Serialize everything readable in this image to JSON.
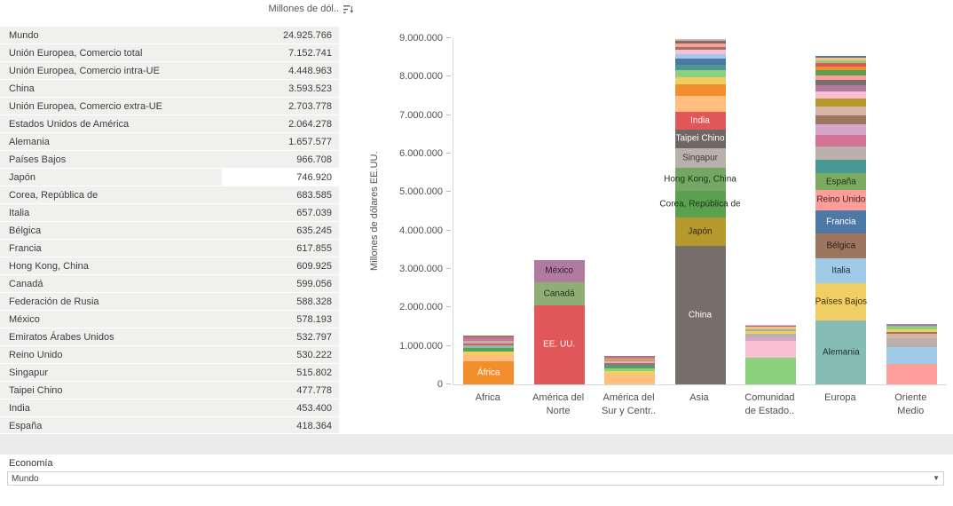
{
  "table": {
    "header": {
      "value_label": "Millones de dól..",
      "sort_icon": "sort-descending"
    },
    "rows": [
      {
        "name": "Mundo",
        "value": "24.925.766"
      },
      {
        "name": "Unión Europea, Comercio total",
        "value": "7.152.741"
      },
      {
        "name": "Unión Europea, Comercio intra-UE",
        "value": "4.448.963"
      },
      {
        "name": "China",
        "value": "3.593.523"
      },
      {
        "name": "Unión Europea, Comercio extra-UE",
        "value": "2.703.778"
      },
      {
        "name": "Estados Unidos de América",
        "value": "2.064.278"
      },
      {
        "name": "Alemania",
        "value": "1.657.577"
      },
      {
        "name": "Países Bajos",
        "value": "966.708"
      },
      {
        "name": "Japón",
        "value": "746.920",
        "highlighted": true
      },
      {
        "name": "Corea, República de",
        "value": "683.585"
      },
      {
        "name": "Italia",
        "value": "657.039"
      },
      {
        "name": "Bélgica",
        "value": "635.245"
      },
      {
        "name": "Francia",
        "value": "617.855"
      },
      {
        "name": "Hong Kong, China",
        "value": "609.925"
      },
      {
        "name": "Canadá",
        "value": "599.056"
      },
      {
        "name": "Federación de Rusia",
        "value": "588.328"
      },
      {
        "name": "México",
        "value": "578.193"
      },
      {
        "name": "Emiratos Árabes Unidos",
        "value": "532.797"
      },
      {
        "name": "Reino Unido",
        "value": "530.222"
      },
      {
        "name": "Singapur",
        "value": "515.802"
      },
      {
        "name": "Taipei Chino",
        "value": "477.778"
      },
      {
        "name": "India",
        "value": "453.400"
      },
      {
        "name": "España",
        "value": "418.364"
      }
    ]
  },
  "chart_data": {
    "type": "stacked-bar",
    "ylabel": "Millones de dólares EE.UU.",
    "ylim": [
      0,
      9000000
    ],
    "yticks": [
      0,
      1000000,
      2000000,
      3000000,
      4000000,
      5000000,
      6000000,
      7000000,
      8000000,
      9000000
    ],
    "ytick_labels": [
      "0",
      "1.000.000",
      "2.000.000",
      "3.000.000",
      "4.000.000",
      "5.000.000",
      "6.000.000",
      "7.000.000",
      "8.000.000",
      "9.000.000"
    ],
    "categories": [
      "Africa",
      "América del\nNorte",
      "América del\nSur y Centr..",
      "Asia",
      "Comunidad\nde Estado..",
      "Europa",
      "Oriente\nMedio"
    ],
    "legend": "none",
    "grid": "off",
    "bars": [
      {
        "category": "Africa",
        "segments": [
          {
            "label": "África",
            "value": 600000,
            "color": "#f28e2b",
            "label_color": "#ffffff"
          },
          {
            "value": 170000,
            "color": "#ffbe7d"
          },
          {
            "value": 90000,
            "color": "#f1ce63"
          },
          {
            "value": 80000,
            "color": "#59a14f"
          },
          {
            "value": 70000,
            "color": "#86bcb6"
          },
          {
            "value": 60000,
            "color": "#e15759"
          },
          {
            "value": 60000,
            "color": "#bab0ac"
          },
          {
            "value": 50000,
            "color": "#d37295"
          },
          {
            "value": 50000,
            "color": "#b07aa1"
          },
          {
            "value": 40000,
            "color": "#9d7660"
          }
        ]
      },
      {
        "category": "America del Norte",
        "segments": [
          {
            "label": "EE. UU.",
            "value": 2064278,
            "color": "#e15759",
            "label_color": "#ffffff"
          },
          {
            "label": "Canadá",
            "value": 599056,
            "color": "#8fae75",
            "label_color": "#26301a"
          },
          {
            "label": "México",
            "value": 578193,
            "color": "#b07aa1",
            "label_color": "#2f2230"
          }
        ]
      },
      {
        "category": "America del Sur y Centr",
        "segments": [
          {
            "value": 250000,
            "color": "#ffbe7d"
          },
          {
            "value": 90000,
            "color": "#f1ce63"
          },
          {
            "value": 70000,
            "color": "#8cd17d"
          },
          {
            "value": 55000,
            "color": "#59a14f"
          },
          {
            "value": 50000,
            "color": "#499894"
          },
          {
            "value": 45000,
            "color": "#e15759"
          },
          {
            "value": 45000,
            "color": "#a0cbe8"
          },
          {
            "value": 40000,
            "color": "#f28e2b"
          },
          {
            "value": 35000,
            "color": "#bab0ac"
          },
          {
            "value": 30000,
            "color": "#d37295"
          },
          {
            "value": 30000,
            "color": "#9d7660"
          }
        ]
      },
      {
        "category": "Asia",
        "segments": [
          {
            "label": "China",
            "value": 3593523,
            "color": "#756e6a",
            "label_color": "#ffffff"
          },
          {
            "label": "Japón",
            "value": 746920,
            "color": "#b6992d",
            "label_color": "#2f2a14"
          },
          {
            "label": "Corea, República de",
            "value": 683585,
            "color": "#59a14f",
            "label_color": "#1e3318"
          },
          {
            "label": "Hong Kong, China",
            "value": 609925,
            "color": "#74a765",
            "label_color": "#1e3318"
          },
          {
            "label": "Singapur",
            "value": 515802,
            "color": "#bab0ac",
            "label_color": "#3d3835"
          },
          {
            "label": "Taipei Chino",
            "value": 477778,
            "color": "#6e6764",
            "label_color": "#ffffff"
          },
          {
            "label": "India",
            "value": 453400,
            "color": "#e15759",
            "label_color": "#ffffff"
          },
          {
            "value": 430000,
            "color": "#ffbe7d"
          },
          {
            "value": 300000,
            "color": "#f28e2b"
          },
          {
            "value": 180000,
            "color": "#f1ce63"
          },
          {
            "value": 170000,
            "color": "#8cd17d"
          },
          {
            "value": 160000,
            "color": "#499894"
          },
          {
            "value": 150000,
            "color": "#4e79a7"
          },
          {
            "value": 120000,
            "color": "#a0cbe8"
          },
          {
            "value": 100000,
            "color": "#fabfd2"
          },
          {
            "value": 90000,
            "color": "#9d7660"
          },
          {
            "value": 80000,
            "color": "#ff9d9a"
          },
          {
            "value": 70000,
            "color": "#79706e"
          },
          {
            "value": 60000,
            "color": "#d7b5a6"
          }
        ]
      },
      {
        "category": "Comunidad de Estado",
        "segments": [
          {
            "value": 690000,
            "color": "#8cd17d"
          },
          {
            "value": 450000,
            "color": "#fabfd2"
          },
          {
            "value": 90000,
            "color": "#d4a6c8"
          },
          {
            "value": 80000,
            "color": "#bab0ac"
          },
          {
            "value": 70000,
            "color": "#f1ce63"
          },
          {
            "value": 60000,
            "color": "#86bcb6"
          },
          {
            "value": 50000,
            "color": "#ffbe7d"
          },
          {
            "value": 30000,
            "color": "#e15759"
          },
          {
            "value": 30000,
            "color": "#a0cbe8"
          }
        ]
      },
      {
        "category": "Europa",
        "segments": [
          {
            "label": "Alemania",
            "value": 1657577,
            "color": "#86bcb6",
            "label_color": "#20312f"
          },
          {
            "label": "Países Bajos",
            "value": 966708,
            "color": "#f1ce63",
            "label_color": "#39300e"
          },
          {
            "label": "Italia",
            "value": 657039,
            "color": "#a0cbe8",
            "label_color": "#20313d"
          },
          {
            "label": "Bélgica",
            "value": 635245,
            "color": "#9d7660",
            "label_color": "#2b1d14"
          },
          {
            "label": "Francia",
            "value": 617855,
            "color": "#4e79a7",
            "label_color": "#ffffff"
          },
          {
            "label": "Reino Unido",
            "value": 530222,
            "color": "#ff9d9a",
            "label_color": "#3c2322"
          },
          {
            "label": "España",
            "value": 418364,
            "color": "#7bab5e",
            "label_color": "#23331c"
          },
          {
            "value": 360000,
            "color": "#499894"
          },
          {
            "value": 340000,
            "color": "#bab0ac"
          },
          {
            "value": 300000,
            "color": "#d37295"
          },
          {
            "value": 270000,
            "color": "#d4a6c8"
          },
          {
            "value": 250000,
            "color": "#9d7660"
          },
          {
            "value": 230000,
            "color": "#d7b5a6"
          },
          {
            "value": 200000,
            "color": "#b6992d"
          },
          {
            "value": 180000,
            "color": "#fabfd2"
          },
          {
            "value": 160000,
            "color": "#b07aa1"
          },
          {
            "value": 140000,
            "color": "#79706e"
          },
          {
            "value": 130000,
            "color": "#ff9d9a"
          },
          {
            "value": 120000,
            "color": "#59a14f"
          },
          {
            "value": 100000,
            "color": "#f28e2b"
          },
          {
            "value": 90000,
            "color": "#e15759"
          },
          {
            "value": 80000,
            "color": "#8cd17d"
          },
          {
            "value": 60000,
            "color": "#ffbe7d"
          },
          {
            "value": 50000,
            "color": "#4e79a7"
          }
        ]
      },
      {
        "category": "Oriente Medio",
        "segments": [
          {
            "value": 520000,
            "color": "#ff9d9a"
          },
          {
            "value": 450000,
            "color": "#a0cbe8"
          },
          {
            "value": 230000,
            "color": "#bab0ac"
          },
          {
            "value": 110000,
            "color": "#d7b5a6"
          },
          {
            "value": 60000,
            "color": "#9d7660"
          },
          {
            "value": 60000,
            "color": "#f1ce63"
          },
          {
            "value": 60000,
            "color": "#8cd17d"
          },
          {
            "value": 40000,
            "color": "#86bcb6"
          },
          {
            "value": 30000,
            "color": "#b07aa1"
          }
        ]
      }
    ]
  },
  "filter": {
    "label": "Economía",
    "value": "Mundo",
    "caret_icon": "▼"
  }
}
